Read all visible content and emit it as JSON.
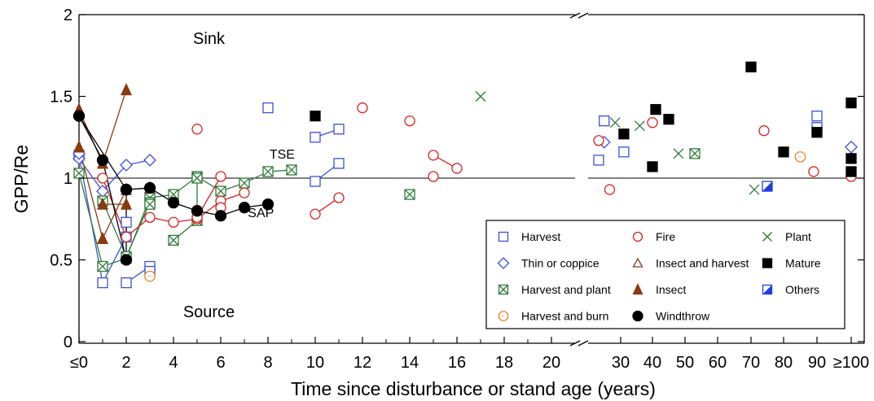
{
  "chart_data": {
    "type": "scatter",
    "xlabel": "Time since disturbance or stand age (years)",
    "ylabel": "GPP/Re",
    "ylim": [
      0,
      2
    ],
    "yticks": [
      {
        "v": 0,
        "label": "0"
      },
      {
        "v": 0.5,
        "label": "0.5"
      },
      {
        "v": 1,
        "label": "1"
      },
      {
        "v": 1.5,
        "label": "1.5"
      },
      {
        "v": 2,
        "label": "2"
      }
    ],
    "x_axis": {
      "left_panel": {
        "xlim": [
          0,
          21
        ],
        "ticks": [
          {
            "v": 0,
            "label": "≤0"
          },
          {
            "v": 2,
            "label": "2"
          },
          {
            "v": 4,
            "label": "4"
          },
          {
            "v": 6,
            "label": "6"
          },
          {
            "v": 8,
            "label": "8"
          },
          {
            "v": 10,
            "label": "10"
          },
          {
            "v": 12,
            "label": "12"
          },
          {
            "v": 14,
            "label": "14"
          },
          {
            "v": 16,
            "label": "16"
          },
          {
            "v": 18,
            "label": "18"
          },
          {
            "v": 20,
            "label": "20"
          }
        ]
      },
      "right_panel": {
        "xlim": [
          22,
          102
        ],
        "ticks": [
          {
            "v": 30,
            "label": "30"
          },
          {
            "v": 40,
            "label": "40"
          },
          {
            "v": 50,
            "label": "50"
          },
          {
            "v": 60,
            "label": "60"
          },
          {
            "v": 70,
            "label": "70"
          },
          {
            "v": 80,
            "label": "80"
          },
          {
            "v": 90,
            "label": "90"
          },
          {
            "v": 100,
            "label": "≥100"
          }
        ]
      },
      "break": true
    },
    "reference_line": 1,
    "annotations": [
      {
        "text": "Sink",
        "x": 5.5,
        "y": 1.82
      },
      {
        "text": "Source",
        "x": 5.5,
        "y": 0.15
      },
      {
        "text": "TSE",
        "x": 8.6,
        "y": 1.12
      },
      {
        "text": "SAP",
        "x": 7.7,
        "y": 0.76
      }
    ],
    "legend_position": "bottom-right",
    "legend": [
      {
        "name": "Harvest",
        "marker": "open-square",
        "color": "#3f4fd8"
      },
      {
        "name": "Thin or coppice",
        "marker": "open-diamond",
        "color": "#3f4fd8"
      },
      {
        "name": "Harvest and plant",
        "marker": "crossed-square",
        "color": "#2f7a3a"
      },
      {
        "name": "Harvest and burn",
        "marker": "open-octagon",
        "color": "#e8822a"
      },
      {
        "name": "Fire",
        "marker": "open-circle",
        "color": "#d92020"
      },
      {
        "name": "Insect and harvest",
        "marker": "open-triangle",
        "color": "#8b3a10"
      },
      {
        "name": "Insect",
        "marker": "filled-triangle",
        "color": "#8b3a10"
      },
      {
        "name": "Windthrow",
        "marker": "filled-circle",
        "color": "#000000"
      },
      {
        "name": "Plant",
        "marker": "x",
        "color": "#2f7a3a"
      },
      {
        "name": "Mature",
        "marker": "filled-square",
        "color": "#000000"
      },
      {
        "name": "Others",
        "marker": "half-square",
        "color": "#1f3fe0"
      }
    ],
    "series": [
      {
        "name": "Harvest",
        "marker": "open-square",
        "color": "#3f4fd8",
        "lines": [
          [
            [
              0,
              1.14
            ],
            [
              1,
              0.36
            ],
            [
              2,
              0.64
            ],
            [
              2,
              0.73
            ]
          ],
          [
            [
              2,
              0.36
            ],
            [
              3,
              0.46
            ]
          ],
          [
            [
              10,
              1.25
            ],
            [
              11,
              1.3
            ]
          ],
          [
            [
              10,
              0.98
            ],
            [
              11,
              1.09
            ]
          ]
        ],
        "points": [
          [
            3,
            0.43
          ],
          [
            8,
            1.43
          ],
          [
            26,
            1.11
          ],
          [
            27,
            1.35
          ],
          [
            31,
            1.16
          ],
          [
            90,
            1.38
          ],
          [
            90,
            1.31
          ]
        ]
      },
      {
        "name": "Thin or coppice",
        "marker": "open-diamond",
        "color": "#3f4fd8",
        "lines": [
          [
            [
              0,
              1.12
            ],
            [
              1,
              0.92
            ],
            [
              2,
              1.08
            ],
            [
              3,
              1.11
            ]
          ]
        ],
        "points": [
          [
            0,
            1.15
          ],
          [
            27,
            1.22
          ],
          [
            100,
            1.19
          ]
        ]
      },
      {
        "name": "Harvest and plant",
        "marker": "crossed-square",
        "color": "#2f7a3a",
        "lines": [
          [
            [
              0,
              1.03
            ],
            [
              1,
              0.46
            ],
            [
              2,
              0.51
            ],
            [
              3,
              0.88
            ],
            [
              4,
              0.9
            ],
            [
              5,
              1.01
            ],
            [
              6,
              0.92
            ],
            [
              7,
              0.97
            ],
            [
              8,
              1.04
            ],
            [
              9,
              1.05
            ]
          ],
          [
            [
              1,
              0.86
            ],
            [
              2,
              0.52
            ],
            [
              3,
              0.85
            ]
          ],
          [
            [
              4,
              0.62
            ],
            [
              5,
              0.74
            ],
            [
              5,
              1.0
            ]
          ]
        ],
        "points": [
          [
            3,
            0.84
          ],
          [
            14,
            0.9
          ],
          [
            53,
            1.15
          ]
        ]
      },
      {
        "name": "Harvest and burn",
        "marker": "open-octagon",
        "color": "#e8822a",
        "points": [
          [
            3,
            0.4
          ],
          [
            85,
            1.13
          ]
        ]
      },
      {
        "name": "Fire",
        "marker": "open-circle",
        "color": "#d92020",
        "lines": [
          [
            [
              1,
              1.0
            ],
            [
              2,
              0.64
            ],
            [
              3,
              0.76
            ],
            [
              4,
              0.73
            ],
            [
              5,
              0.75
            ],
            [
              6,
              0.86
            ],
            [
              7,
              0.91
            ]
          ],
          [
            [
              5,
              0.76
            ],
            [
              6,
              1.01
            ]
          ],
          [
            [
              10,
              0.78
            ],
            [
              11,
              0.88
            ]
          ],
          [
            [
              15,
              1.14
            ],
            [
              16,
              1.06
            ]
          ],
          [
            [
              15,
              1.01
            ]
          ]
        ],
        "points": [
          [
            5,
            1.3
          ],
          [
            6,
            0.82
          ],
          [
            12,
            1.43
          ],
          [
            14,
            1.35
          ],
          [
            26,
            1.23
          ],
          [
            28,
            0.93
          ],
          [
            40,
            1.34
          ],
          [
            74,
            1.29
          ],
          [
            89,
            1.04
          ],
          [
            100,
            1.01
          ]
        ]
      },
      {
        "name": "Insect",
        "marker": "filled-triangle",
        "color": "#8b3a10",
        "lines": [
          [
            [
              0,
              1.42
            ],
            [
              1,
              1.09
            ],
            [
              2,
              1.54
            ]
          ],
          [
            [
              0,
              1.19
            ],
            [
              1,
              0.63
            ],
            [
              2,
              0.93
            ],
            [
              3,
              0.94
            ]
          ],
          [
            [
              1,
              0.84
            ],
            [
              2,
              0.84
            ]
          ]
        ],
        "points": []
      },
      {
        "name": "Windthrow",
        "marker": "filled-circle",
        "color": "#000000",
        "lines": [
          [
            [
              0,
              1.38
            ],
            [
              1,
              1.11
            ],
            [
              2,
              0.5
            ],
            [
              2,
              0.93
            ],
            [
              3,
              0.94
            ],
            [
              4,
              0.85
            ],
            [
              5,
              0.8
            ],
            [
              6,
              0.77
            ],
            [
              7,
              0.82
            ],
            [
              8,
              0.84
            ]
          ],
          [
            [
              0,
              1.38
            ],
            [
              2,
              0.93
            ]
          ]
        ],
        "points": []
      },
      {
        "name": "Plant",
        "marker": "x",
        "color": "#2f7a3a",
        "points": [
          [
            17,
            1.5
          ],
          [
            29,
            1.34
          ],
          [
            36,
            1.32
          ],
          [
            48,
            1.15
          ],
          [
            71,
            0.93
          ]
        ]
      },
      {
        "name": "Mature",
        "marker": "filled-square",
        "color": "#000000",
        "points": [
          [
            10,
            1.38
          ],
          [
            31,
            1.27
          ],
          [
            40,
            1.07
          ],
          [
            41,
            1.42
          ],
          [
            45,
            1.36
          ],
          [
            70,
            1.68
          ],
          [
            80,
            1.16
          ],
          [
            90,
            1.28
          ],
          [
            100,
            1.46
          ],
          [
            100,
            1.12
          ],
          [
            100,
            1.04
          ]
        ]
      },
      {
        "name": "Others",
        "marker": "half-square",
        "color": "#1f3fe0",
        "points": [
          [
            75,
            0.95
          ]
        ]
      }
    ]
  }
}
